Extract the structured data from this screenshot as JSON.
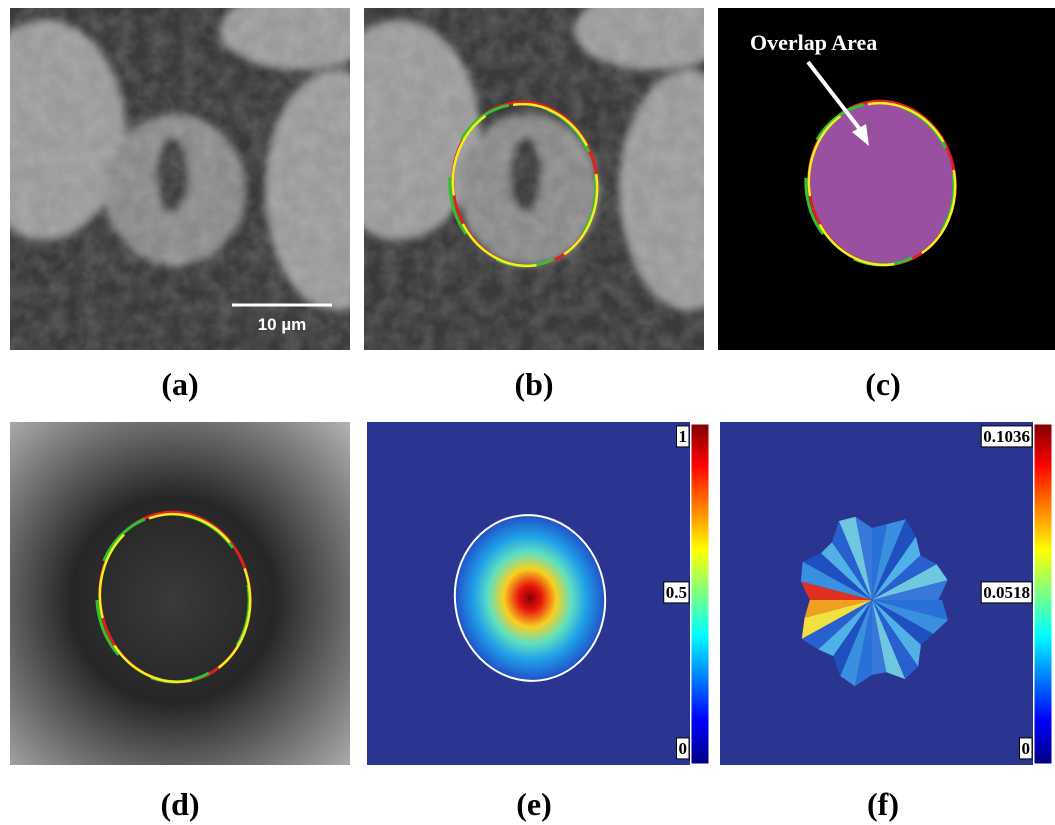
{
  "panels": [
    {
      "label": "(a)",
      "scale_bar": "10 µm"
    },
    {
      "label": "(b)"
    },
    {
      "label": "(c)",
      "annotation": "Overlap Area"
    },
    {
      "label": "(d)"
    },
    {
      "label": "(e)",
      "colorbar_ticks": [
        1,
        0.5,
        0
      ]
    },
    {
      "label": "(f)",
      "colorbar_ticks": [
        0.1036,
        0.0518,
        0
      ]
    }
  ]
}
